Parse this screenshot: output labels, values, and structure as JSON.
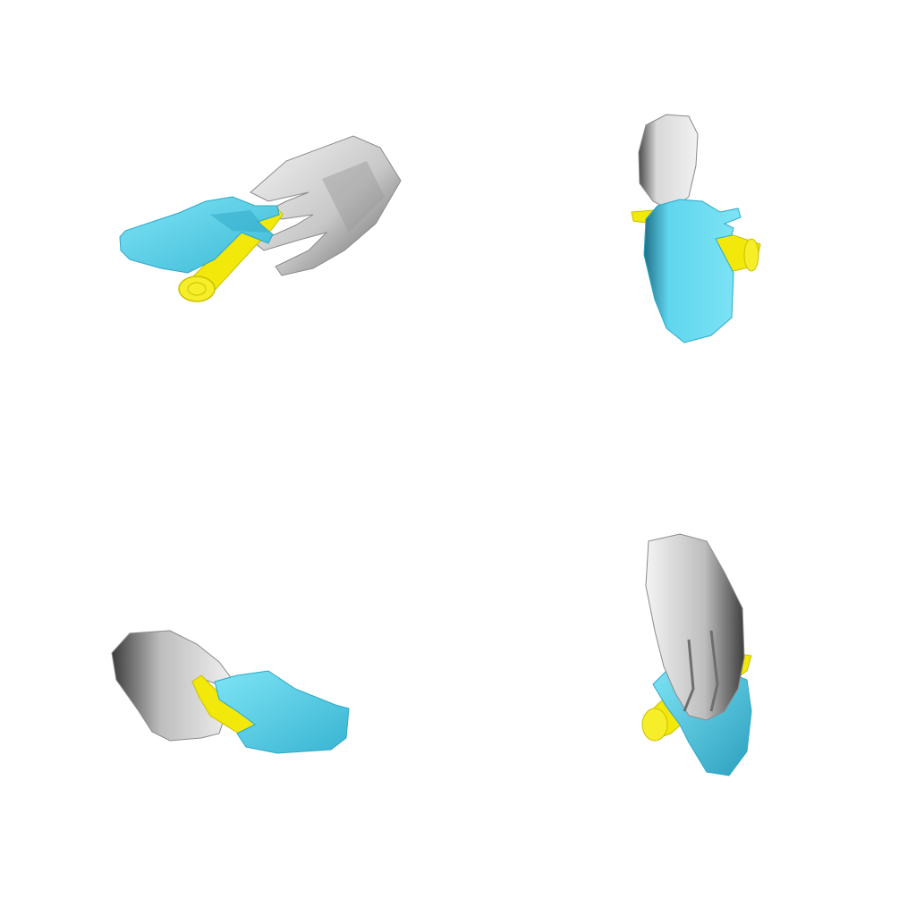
{
  "scene": {
    "views": [
      {
        "id": "top-left"
      },
      {
        "id": "top-right"
      },
      {
        "id": "bottom-left"
      },
      {
        "id": "bottom-right"
      }
    ],
    "colors": {
      "background": "#ffffff",
      "receiver_hand": "#5fd6ee",
      "receiver_hand_shade": "#2ea8c8",
      "giver_hand": "#d9d9d9",
      "giver_hand_shade": "#6e6e6e",
      "object": "#f2e80a",
      "object_shade": "#c9c000"
    }
  }
}
